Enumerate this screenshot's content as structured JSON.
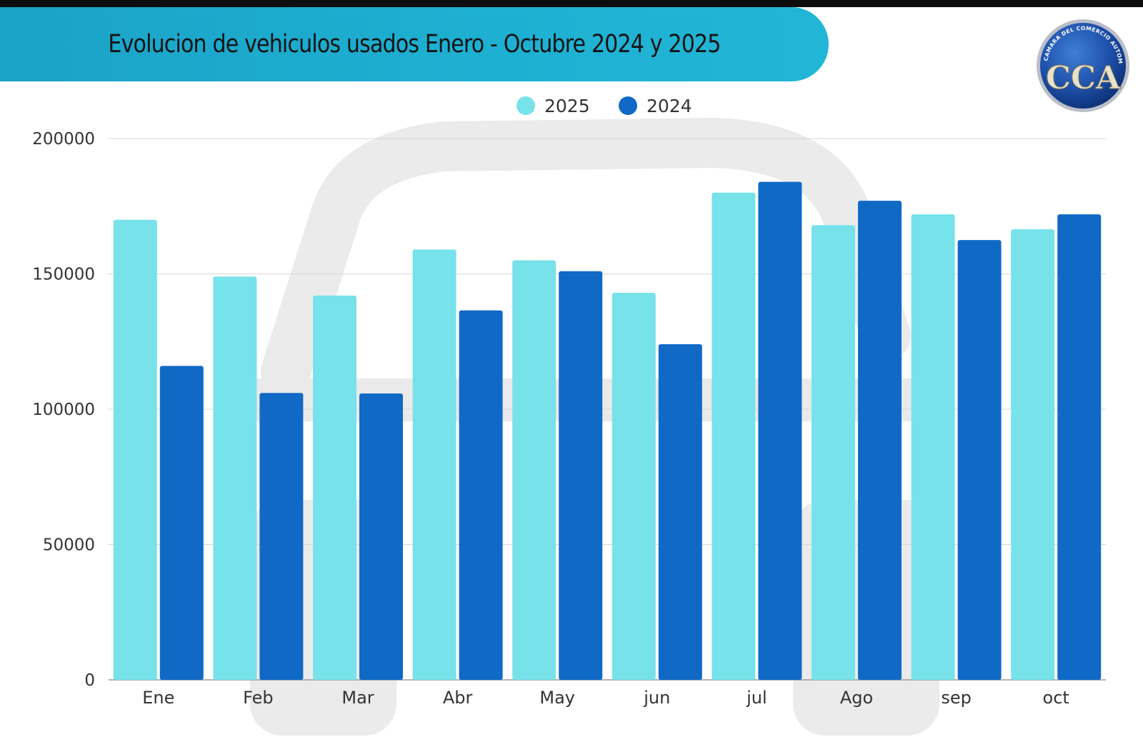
{
  "colors": {
    "series_2025": "#77e2ea",
    "series_2024": "#1169c6",
    "banner": "#1eb0d2"
  },
  "logo": {
    "icon": "cca-emblem-icon",
    "ring_text": "CAMARA DEL COMERCIO AUTOMOTOR",
    "letters": "CCA"
  },
  "chart_data": {
    "type": "bar",
    "title": "Evolucion de vehiculos usados Enero - Octubre 2024 y 2025",
    "categories": [
      "Ene",
      "Feb",
      "Mar",
      "Abr",
      "May",
      "jun",
      "jul",
      "Ago",
      "sep",
      "oct"
    ],
    "series": [
      {
        "name": "2025",
        "values": [
          170000,
          149000,
          142000,
          159000,
          155000,
          143000,
          180000,
          168000,
          172000,
          166500
        ]
      },
      {
        "name": "2024",
        "values": [
          116000,
          106000,
          105800,
          136500,
          151000,
          124000,
          184000,
          177000,
          162500,
          172000
        ]
      }
    ],
    "yticks": [
      0,
      50000,
      100000,
      150000,
      200000
    ],
    "ylim": [
      0,
      200000
    ],
    "xlabel": "",
    "ylabel": "",
    "grid": true,
    "legend_position": "top-center"
  }
}
